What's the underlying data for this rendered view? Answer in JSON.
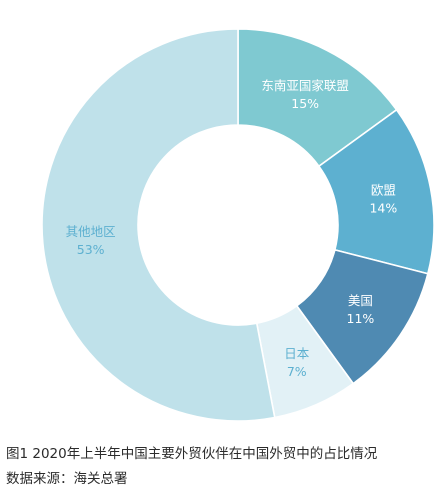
{
  "chart_data": {
    "type": "pie",
    "donut": true,
    "categories": [
      "东南亚国家联盟",
      "欧盟",
      "美国",
      "日本",
      "其他地区"
    ],
    "values": [
      15,
      14,
      11,
      7,
      53
    ],
    "value_labels": [
      "15%",
      "14%",
      "11%",
      "7%",
      "53%"
    ],
    "colors": [
      "#7fc9d1",
      "#5db0d0",
      "#4f8ab2",
      "#e2f1f6",
      "#bfe1ea"
    ],
    "label_colors": [
      "#ffffff",
      "#ffffff",
      "#ffffff",
      "#5db0d0",
      "#5db0d0"
    ],
    "start": "top, clockwise"
  },
  "caption": {
    "title": "图1  2020年上半年中国主要外贸伙伴在中国外贸中的占比情况",
    "source": "数据来源：海关总署"
  }
}
